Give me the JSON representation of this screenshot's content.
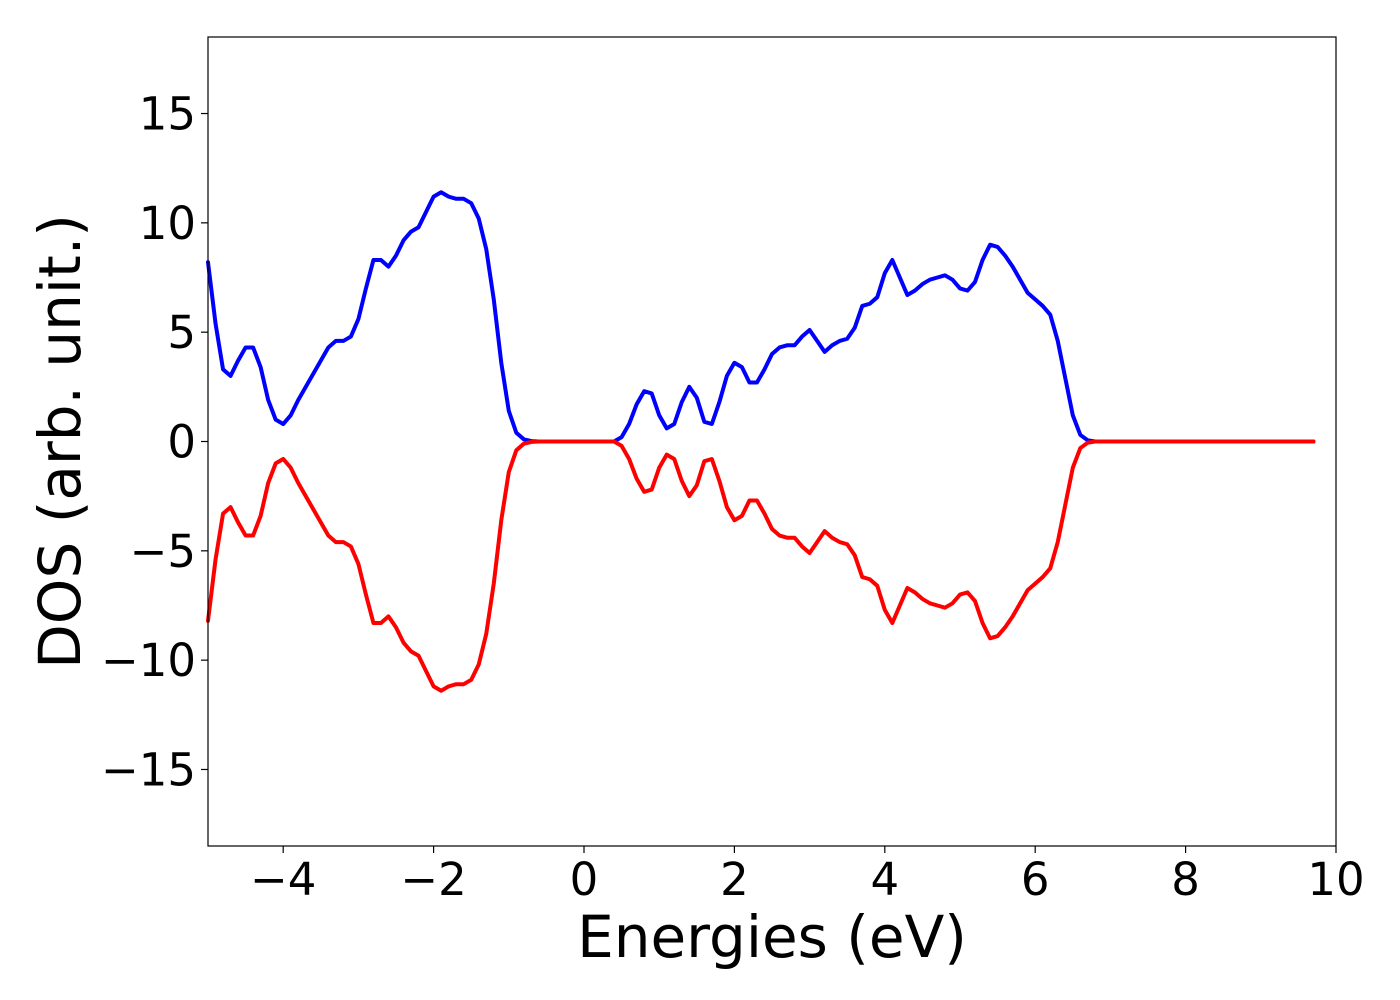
{
  "chart_data": {
    "type": "line",
    "title": "",
    "xlabel": "Energies (eV)",
    "ylabel": "DOS (arb. unit.)",
    "xlim": [
      -5,
      10
    ],
    "ylim": [
      -18.5,
      18.5
    ],
    "xticks": [
      -4,
      -2,
      0,
      2,
      4,
      6,
      8,
      10
    ],
    "xtick_labels": [
      "−4",
      "−2",
      "0",
      "2",
      "4",
      "6",
      "8",
      "10"
    ],
    "yticks": [
      -15,
      -10,
      -5,
      0,
      5,
      10,
      15
    ],
    "ytick_labels": [
      "−15",
      "−10",
      "−5",
      "0",
      "5",
      "10",
      "15"
    ],
    "grid": false,
    "series": [
      {
        "color": "#0000ff",
        "x": [
          -5.0,
          -4.9,
          -4.8,
          -4.7,
          -4.6,
          -4.5,
          -4.4,
          -4.3,
          -4.2,
          -4.1,
          -4.0,
          -3.9,
          -3.8,
          -3.7,
          -3.6,
          -3.5,
          -3.4,
          -3.3,
          -3.2,
          -3.1,
          -3.0,
          -2.9,
          -2.8,
          -2.7,
          -2.6,
          -2.5,
          -2.4,
          -2.3,
          -2.2,
          -2.1,
          -2.0,
          -1.9,
          -1.8,
          -1.7,
          -1.6,
          -1.5,
          -1.4,
          -1.3,
          -1.2,
          -1.1,
          -1.0,
          -0.9,
          -0.8,
          -0.7,
          -0.6,
          -0.5,
          -0.4,
          -0.2,
          0.0,
          0.2,
          0.4,
          0.5,
          0.6,
          0.7,
          0.8,
          0.9,
          1.0,
          1.1,
          1.2,
          1.3,
          1.4,
          1.5,
          1.6,
          1.7,
          1.8,
          1.9,
          2.0,
          2.1,
          2.2,
          2.3,
          2.4,
          2.5,
          2.6,
          2.7,
          2.8,
          2.9,
          3.0,
          3.1,
          3.2,
          3.3,
          3.4,
          3.5,
          3.6,
          3.7,
          3.8,
          3.9,
          4.0,
          4.1,
          4.2,
          4.3,
          4.4,
          4.5,
          4.6,
          4.7,
          4.8,
          4.9,
          5.0,
          5.1,
          5.2,
          5.3,
          5.4,
          5.5,
          5.6,
          5.7,
          5.8,
          5.9,
          6.0,
          6.1,
          6.2,
          6.3,
          6.4,
          6.5,
          6.6,
          6.7,
          6.8,
          6.9,
          7.0,
          7.1,
          7.2,
          7.3,
          7.4,
          7.5,
          7.6,
          7.7,
          7.8,
          7.9,
          8.0,
          8.2,
          8.5,
          9.0,
          9.5,
          9.7
        ],
        "y": [
          8.2,
          5.4,
          3.3,
          3.0,
          3.7,
          4.3,
          4.3,
          3.4,
          1.9,
          1.0,
          0.8,
          1.2,
          1.9,
          2.5,
          3.1,
          3.7,
          4.3,
          4.6,
          4.6,
          4.8,
          5.6,
          7.0,
          8.3,
          8.3,
          8.0,
          8.5,
          9.2,
          9.6,
          9.8,
          10.5,
          11.2,
          11.4,
          11.2,
          11.1,
          11.1,
          10.9,
          10.2,
          8.8,
          6.5,
          3.6,
          1.4,
          0.4,
          0.1,
          0.02,
          0.0,
          0.0,
          0.0,
          0.0,
          0.0,
          0.0,
          0.0,
          0.2,
          0.8,
          1.7,
          2.3,
          2.2,
          1.2,
          0.6,
          0.8,
          1.8,
          2.5,
          2.0,
          0.9,
          0.8,
          1.8,
          3.0,
          3.6,
          3.4,
          2.7,
          2.7,
          3.3,
          4.0,
          4.3,
          4.4,
          4.4,
          4.8,
          5.1,
          4.6,
          4.1,
          4.4,
          4.6,
          4.7,
          5.2,
          6.2,
          6.3,
          6.6,
          7.7,
          8.3,
          7.5,
          6.7,
          6.9,
          7.2,
          7.4,
          7.5,
          7.6,
          7.4,
          7.0,
          6.9,
          7.3,
          8.3,
          9.0,
          8.9,
          8.5,
          8.0,
          7.4,
          6.8,
          6.5,
          6.2,
          5.8,
          4.6,
          2.9,
          1.2,
          0.3,
          0.05,
          0.0,
          0.0,
          0.0,
          0.0,
          0.0,
          0.0,
          0.0,
          0.0,
          0.0,
          0.0,
          0.0,
          0.0,
          0.0,
          0.0,
          0.0,
          0.0,
          0.0,
          0.0
        ]
      },
      {
        "color": "#ff0000",
        "x": [
          -5.0,
          -4.9,
          -4.8,
          -4.7,
          -4.6,
          -4.5,
          -4.4,
          -4.3,
          -4.2,
          -4.1,
          -4.0,
          -3.9,
          -3.8,
          -3.7,
          -3.6,
          -3.5,
          -3.4,
          -3.3,
          -3.2,
          -3.1,
          -3.0,
          -2.9,
          -2.8,
          -2.7,
          -2.6,
          -2.5,
          -2.4,
          -2.3,
          -2.2,
          -2.1,
          -2.0,
          -1.9,
          -1.8,
          -1.7,
          -1.6,
          -1.5,
          -1.4,
          -1.3,
          -1.2,
          -1.1,
          -1.0,
          -0.9,
          -0.8,
          -0.7,
          -0.6,
          -0.5,
          -0.4,
          -0.2,
          0.0,
          0.2,
          0.4,
          0.5,
          0.6,
          0.7,
          0.8,
          0.9,
          1.0,
          1.1,
          1.2,
          1.3,
          1.4,
          1.5,
          1.6,
          1.7,
          1.8,
          1.9,
          2.0,
          2.1,
          2.2,
          2.3,
          2.4,
          2.5,
          2.6,
          2.7,
          2.8,
          2.9,
          3.0,
          3.1,
          3.2,
          3.3,
          3.4,
          3.5,
          3.6,
          3.7,
          3.8,
          3.9,
          4.0,
          4.1,
          4.2,
          4.3,
          4.4,
          4.5,
          4.6,
          4.7,
          4.8,
          4.9,
          5.0,
          5.1,
          5.2,
          5.3,
          5.4,
          5.5,
          5.6,
          5.7,
          5.8,
          5.9,
          6.0,
          6.1,
          6.2,
          6.3,
          6.4,
          6.5,
          6.6,
          6.7,
          6.8,
          6.9,
          7.0,
          7.1,
          7.2,
          7.3,
          7.4,
          7.5,
          7.6,
          7.7,
          7.8,
          7.9,
          8.0,
          8.2,
          8.5,
          9.0,
          9.5,
          9.7
        ],
        "y": [
          -8.2,
          -5.4,
          -3.3,
          -3.0,
          -3.7,
          -4.3,
          -4.3,
          -3.4,
          -1.9,
          -1.0,
          -0.8,
          -1.2,
          -1.9,
          -2.5,
          -3.1,
          -3.7,
          -4.3,
          -4.6,
          -4.6,
          -4.8,
          -5.6,
          -7.0,
          -8.3,
          -8.3,
          -8.0,
          -8.5,
          -9.2,
          -9.6,
          -9.8,
          -10.5,
          -11.2,
          -11.4,
          -11.2,
          -11.1,
          -11.1,
          -10.9,
          -10.2,
          -8.8,
          -6.5,
          -3.6,
          -1.4,
          -0.4,
          -0.1,
          -0.02,
          0.0,
          0.0,
          0.0,
          0.0,
          0.0,
          0.0,
          0.0,
          -0.2,
          -0.8,
          -1.7,
          -2.3,
          -2.2,
          -1.2,
          -0.6,
          -0.8,
          -1.8,
          -2.5,
          -2.0,
          -0.9,
          -0.8,
          -1.8,
          -3.0,
          -3.6,
          -3.4,
          -2.7,
          -2.7,
          -3.3,
          -4.0,
          -4.3,
          -4.4,
          -4.4,
          -4.8,
          -5.1,
          -4.6,
          -4.1,
          -4.4,
          -4.6,
          -4.7,
          -5.2,
          -6.2,
          -6.3,
          -6.6,
          -7.7,
          -8.3,
          -7.5,
          -6.7,
          -6.9,
          -7.2,
          -7.4,
          -7.5,
          -7.6,
          -7.4,
          -7.0,
          -6.9,
          -7.3,
          -8.3,
          -9.0,
          -8.9,
          -8.5,
          -8.0,
          -7.4,
          -6.8,
          -6.5,
          -6.2,
          -5.8,
          -4.6,
          -2.9,
          -1.2,
          -0.3,
          -0.05,
          0.0,
          0.0,
          0.0,
          0.0,
          0.0,
          0.0,
          0.0,
          0.0,
          0.0,
          0.0,
          0.0,
          0.0,
          0.0,
          0.0,
          0.0,
          0.0,
          0.0,
          0.0
        ]
      }
    ]
  }
}
